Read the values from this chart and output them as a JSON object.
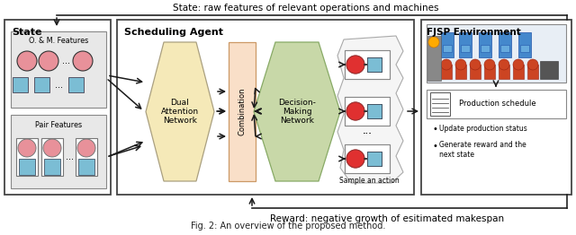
{
  "state_label": "State",
  "agent_label": "Scheduling Agent",
  "fjsp_label": "FJSP Environment",
  "om_features": "O. & M. Features",
  "pair_features": "Pair Features",
  "dan_label": "Dual\nAttention\nNetwork",
  "combination_label": "Combination",
  "dmn_label": "Decision-\nMaking\nNetwork",
  "sample_label": "Sample an action",
  "prod_schedule": "Production schedule",
  "bullet1": "Update production status",
  "bullet2": "Generate reward and the\nnext state",
  "top_text": "State: raw features of relevant operations and machines",
  "bottom_text": "Reward: negative growth of esitimated makespan",
  "fig_caption": "Fig. 2: An overview of the proposed method.",
  "bg_color": "#ffffff",
  "pink_color": "#e8919a",
  "blue_color": "#7bbdd4",
  "dan_color": "#f5e9b8",
  "combo_color": "#f9dfc8",
  "dmn_color": "#c8d8a8",
  "red_dot": "#e03030",
  "gray_subbox": "#e8e8e8"
}
